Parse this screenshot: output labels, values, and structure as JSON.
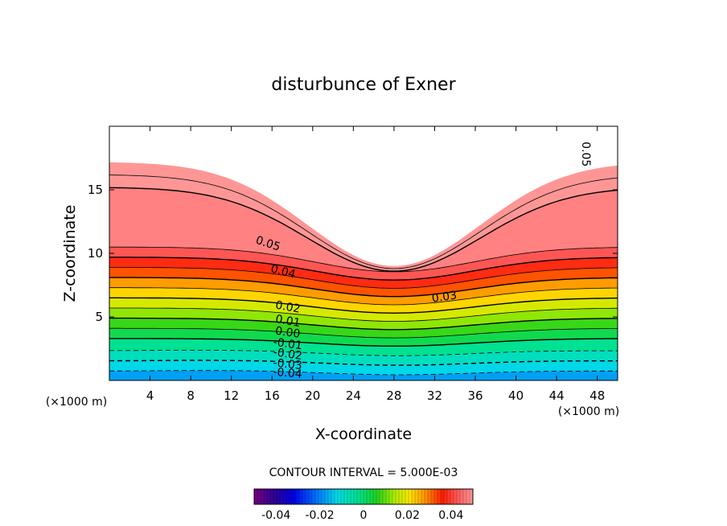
{
  "chart_data": {
    "type": "contour",
    "title": "disturbunce of Exner",
    "xlabel": "X-coordinate",
    "ylabel": "Z-coordinate",
    "x_unit": "(×1000 m)",
    "xlim": [
      0,
      50
    ],
    "ylim": [
      0,
      20
    ],
    "x_ticks": [
      4,
      8,
      12,
      16,
      20,
      24,
      28,
      32,
      36,
      40,
      44,
      48
    ],
    "y_ticks": [
      5,
      10,
      15
    ],
    "contour_interval_text": "CONTOUR INTERVAL = 5.000E-03",
    "colorbar": {
      "range": [
        -0.05,
        0.05
      ],
      "tick_values": [
        -0.04,
        -0.02,
        0,
        0.02,
        0.04
      ],
      "tick_labels": [
        "-0.04",
        "-0.02",
        "0",
        "0.02",
        "0.04"
      ]
    },
    "level_labels": [
      {
        "text": "0.05",
        "x": 15.5,
        "z": 10.5,
        "rot": 18
      },
      {
        "text": "0.04",
        "x": 17,
        "z": 8.3,
        "rot": 15
      },
      {
        "text": "0.03",
        "x": 33,
        "z": 6.3,
        "rot": -8
      },
      {
        "text": "0.02",
        "x": 17.5,
        "z": 5.5,
        "rot": 10
      },
      {
        "text": "0.01",
        "x": 17.5,
        "z": 4.4,
        "rot": 10
      },
      {
        "text": "0.00",
        "x": 17.5,
        "z": 3.5,
        "rot": 8
      },
      {
        "text": "-0.01",
        "x": 17.5,
        "z": 2.6,
        "rot": 8
      },
      {
        "text": "-0.02",
        "x": 17.5,
        "z": 1.8,
        "rot": 8
      },
      {
        "text": "-0.03",
        "x": 17.5,
        "z": 1.0,
        "rot": 6
      },
      {
        "text": "-0.04",
        "x": 17.5,
        "z": 0.3,
        "rot": 5
      },
      {
        "text": "0.05",
        "x": 46.5,
        "z": 17.8,
        "rot": 90
      }
    ]
  }
}
